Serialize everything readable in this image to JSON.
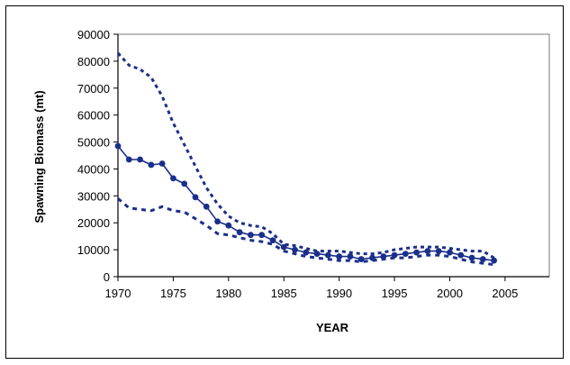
{
  "chart_data": {
    "type": "line",
    "title": "",
    "xlabel": "YEAR",
    "ylabel": "Spawning Biomass (mt)",
    "xlim": [
      1970,
      2009
    ],
    "ylim": [
      0,
      90000
    ],
    "xticks": [
      1970,
      1975,
      1980,
      1985,
      1990,
      1995,
      2000,
      2005
    ],
    "yticks": [
      0,
      10000,
      20000,
      30000,
      40000,
      50000,
      60000,
      70000,
      80000,
      90000
    ],
    "grid": false,
    "legend": "none",
    "colors": {
      "series": "#1a2f8a",
      "axis": "#000000",
      "plot_border": "#7a7a7a"
    },
    "series": [
      {
        "style": "solid-markers",
        "x": [
          1970,
          1971,
          1972,
          1973,
          1974,
          1975,
          1976,
          1977,
          1978,
          1979,
          1980,
          1981,
          1982,
          1983,
          1984,
          1985,
          1986,
          1987,
          1988,
          1989,
          1990,
          1991,
          1992,
          1993,
          1994,
          1995,
          1996,
          1997,
          1998,
          1999,
          2000,
          2001,
          2002,
          2003,
          2004
        ],
        "y": [
          48500,
          43500,
          43500,
          41500,
          42000,
          36500,
          34500,
          29500,
          26000,
          20500,
          19000,
          16500,
          15500,
          15500,
          13500,
          11000,
          10000,
          9000,
          8500,
          8000,
          7500,
          7500,
          6500,
          7000,
          7500,
          8000,
          8500,
          9000,
          9500,
          9500,
          9000,
          8000,
          7000,
          6500,
          6000
        ]
      },
      {
        "style": "dashed-upper",
        "x": [
          1970,
          1971,
          1972,
          1973,
          1974,
          1975,
          1976,
          1977,
          1978,
          1979,
          1980,
          1981,
          1982,
          1983,
          1984,
          1985,
          1986,
          1987,
          1988,
          1989,
          1990,
          1991,
          1992,
          1993,
          1994,
          1995,
          1996,
          1997,
          1998,
          1999,
          2000,
          2001,
          2002,
          2003,
          2004
        ],
        "y": [
          83000,
          78500,
          77000,
          74000,
          67000,
          57000,
          49000,
          41000,
          33000,
          27000,
          22500,
          20000,
          19000,
          18500,
          16000,
          12000,
          11500,
          10500,
          9500,
          9500,
          9500,
          9000,
          8500,
          8500,
          9000,
          10000,
          10500,
          11000,
          11000,
          11000,
          10500,
          10000,
          9500,
          9500,
          7000
        ]
      },
      {
        "style": "dashed-lower",
        "x": [
          1970,
          1971,
          1972,
          1973,
          1974,
          1975,
          1976,
          1977,
          1978,
          1979,
          1980,
          1981,
          1982,
          1983,
          1984,
          1985,
          1986,
          1987,
          1988,
          1989,
          1990,
          1991,
          1992,
          1993,
          1994,
          1995,
          1996,
          1997,
          1998,
          1999,
          2000,
          2001,
          2002,
          2003,
          2004
        ],
        "y": [
          29000,
          25500,
          25000,
          24500,
          26000,
          24500,
          24000,
          21500,
          19000,
          16000,
          15500,
          14500,
          13500,
          13000,
          12000,
          9500,
          8500,
          7500,
          7000,
          6500,
          6000,
          6000,
          5500,
          6000,
          6500,
          7000,
          7000,
          7500,
          8000,
          8000,
          7500,
          6500,
          5500,
          5000,
          4500
        ]
      }
    ]
  }
}
